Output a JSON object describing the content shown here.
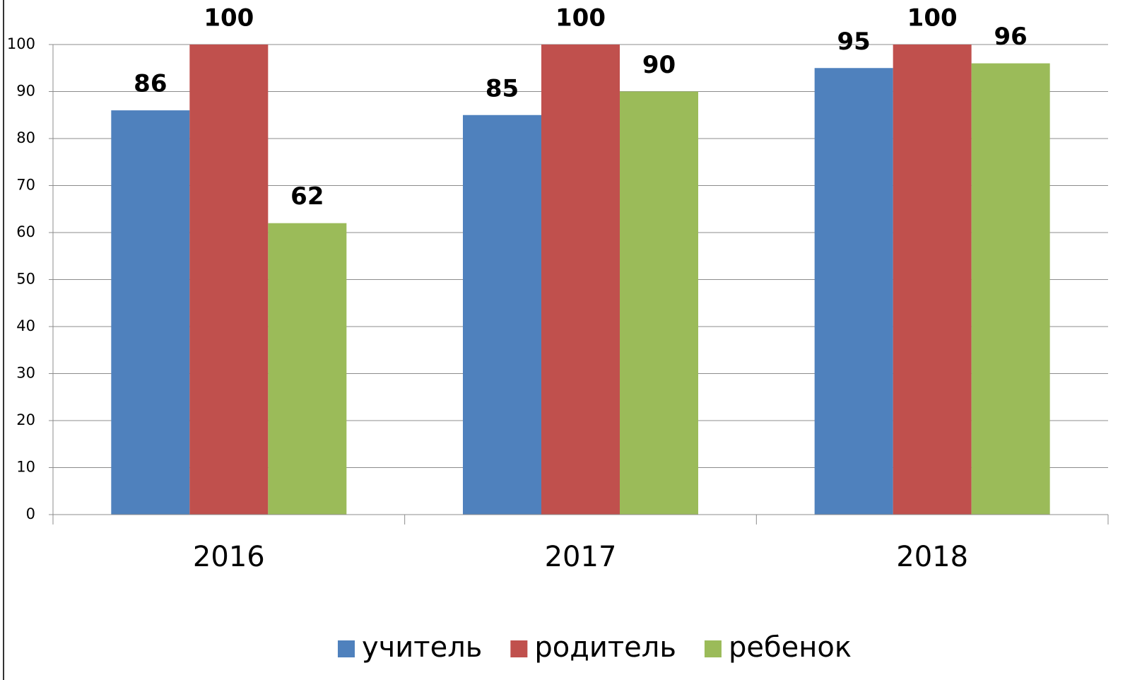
{
  "chart_data": {
    "type": "bar",
    "categories": [
      "2016",
      "2017",
      "2018"
    ],
    "series": [
      {
        "name": "учитель",
        "color": "#4f81bd",
        "values": [
          86,
          85,
          95
        ]
      },
      {
        "name": "родитель",
        "color": "#c0504d",
        "values": [
          100,
          100,
          100
        ]
      },
      {
        "name": "ребенок",
        "color": "#9bbb59",
        "values": [
          62,
          90,
          96
        ]
      }
    ],
    "ylim": [
      0,
      100
    ],
    "yticks": [
      0,
      10,
      20,
      30,
      40,
      50,
      60,
      70,
      80,
      90,
      100
    ],
    "grid": true,
    "legend": "bottom"
  }
}
